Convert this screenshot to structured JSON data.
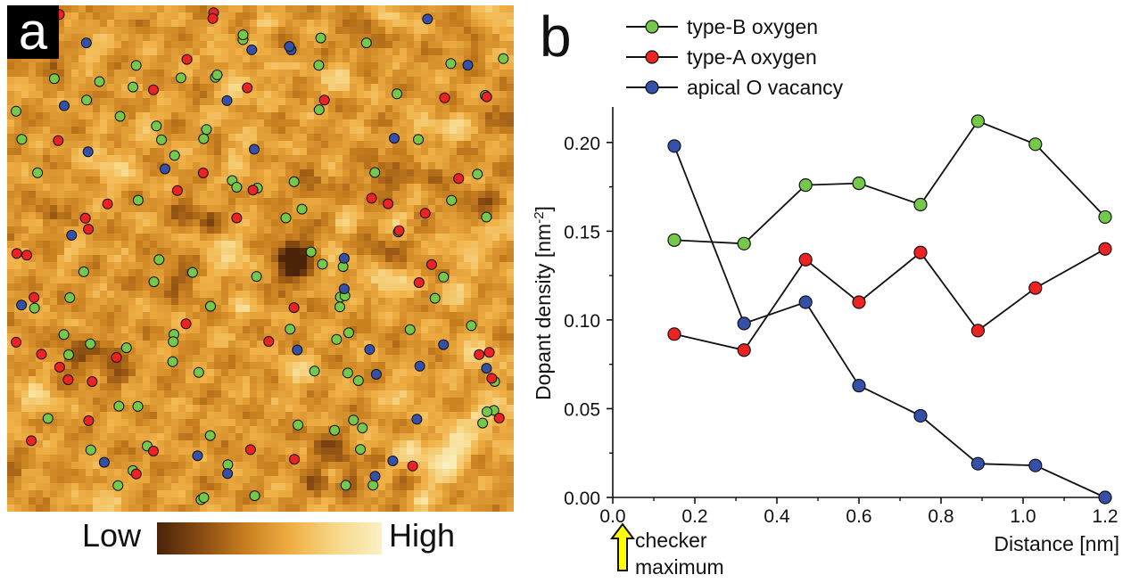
{
  "panel_a": {
    "letter": "a",
    "colorbar_low": "Low",
    "colorbar_high": "High",
    "colorbar_colors": [
      "#4a2308",
      "#8a4c12",
      "#c9801f",
      "#f0b045",
      "#f7d98a",
      "#fbf0c4"
    ]
  },
  "panel_b": {
    "letter": "b",
    "annotation_line1": "checker",
    "annotation_line2": "maximum",
    "arrow_color": "#ffff00"
  },
  "colors": {
    "type_b": "#74c94a",
    "type_a": "#ee2222",
    "vacancy": "#3550a8",
    "map_base": "#d08a28"
  },
  "chart_data": {
    "type": "line",
    "xlabel": "Distance [nm]",
    "ylabel": "Dopant density [nm",
    "ylabel_sup": "-2",
    "ylabel_close": "]",
    "xlim": [
      0.0,
      1.2
    ],
    "ylim": [
      0.0,
      0.22
    ],
    "xticks": [
      "0.0",
      "0.2",
      "0.4",
      "0.6",
      "0.8",
      "1.0",
      "1.2"
    ],
    "yticks": [
      "0.00",
      "0.05",
      "0.10",
      "0.15",
      "0.20"
    ],
    "x": [
      0.15,
      0.32,
      0.47,
      0.6,
      0.75,
      0.89,
      1.03,
      1.2
    ],
    "series": [
      {
        "name": "type-B oxygen",
        "color": "#74c94a",
        "values": [
          0.145,
          0.143,
          0.176,
          0.177,
          0.165,
          0.212,
          0.199,
          0.158
        ]
      },
      {
        "name": "type-A oxygen",
        "color": "#ee2222",
        "values": [
          0.092,
          0.083,
          0.134,
          0.11,
          0.138,
          0.094,
          0.118,
          0.14
        ]
      },
      {
        "name": "apical O vacancy",
        "color": "#3550a8",
        "values": [
          0.198,
          0.098,
          0.11,
          0.063,
          0.046,
          0.019,
          0.018,
          0.0
        ]
      }
    ],
    "legend_position": "top-left",
    "grid": false
  }
}
